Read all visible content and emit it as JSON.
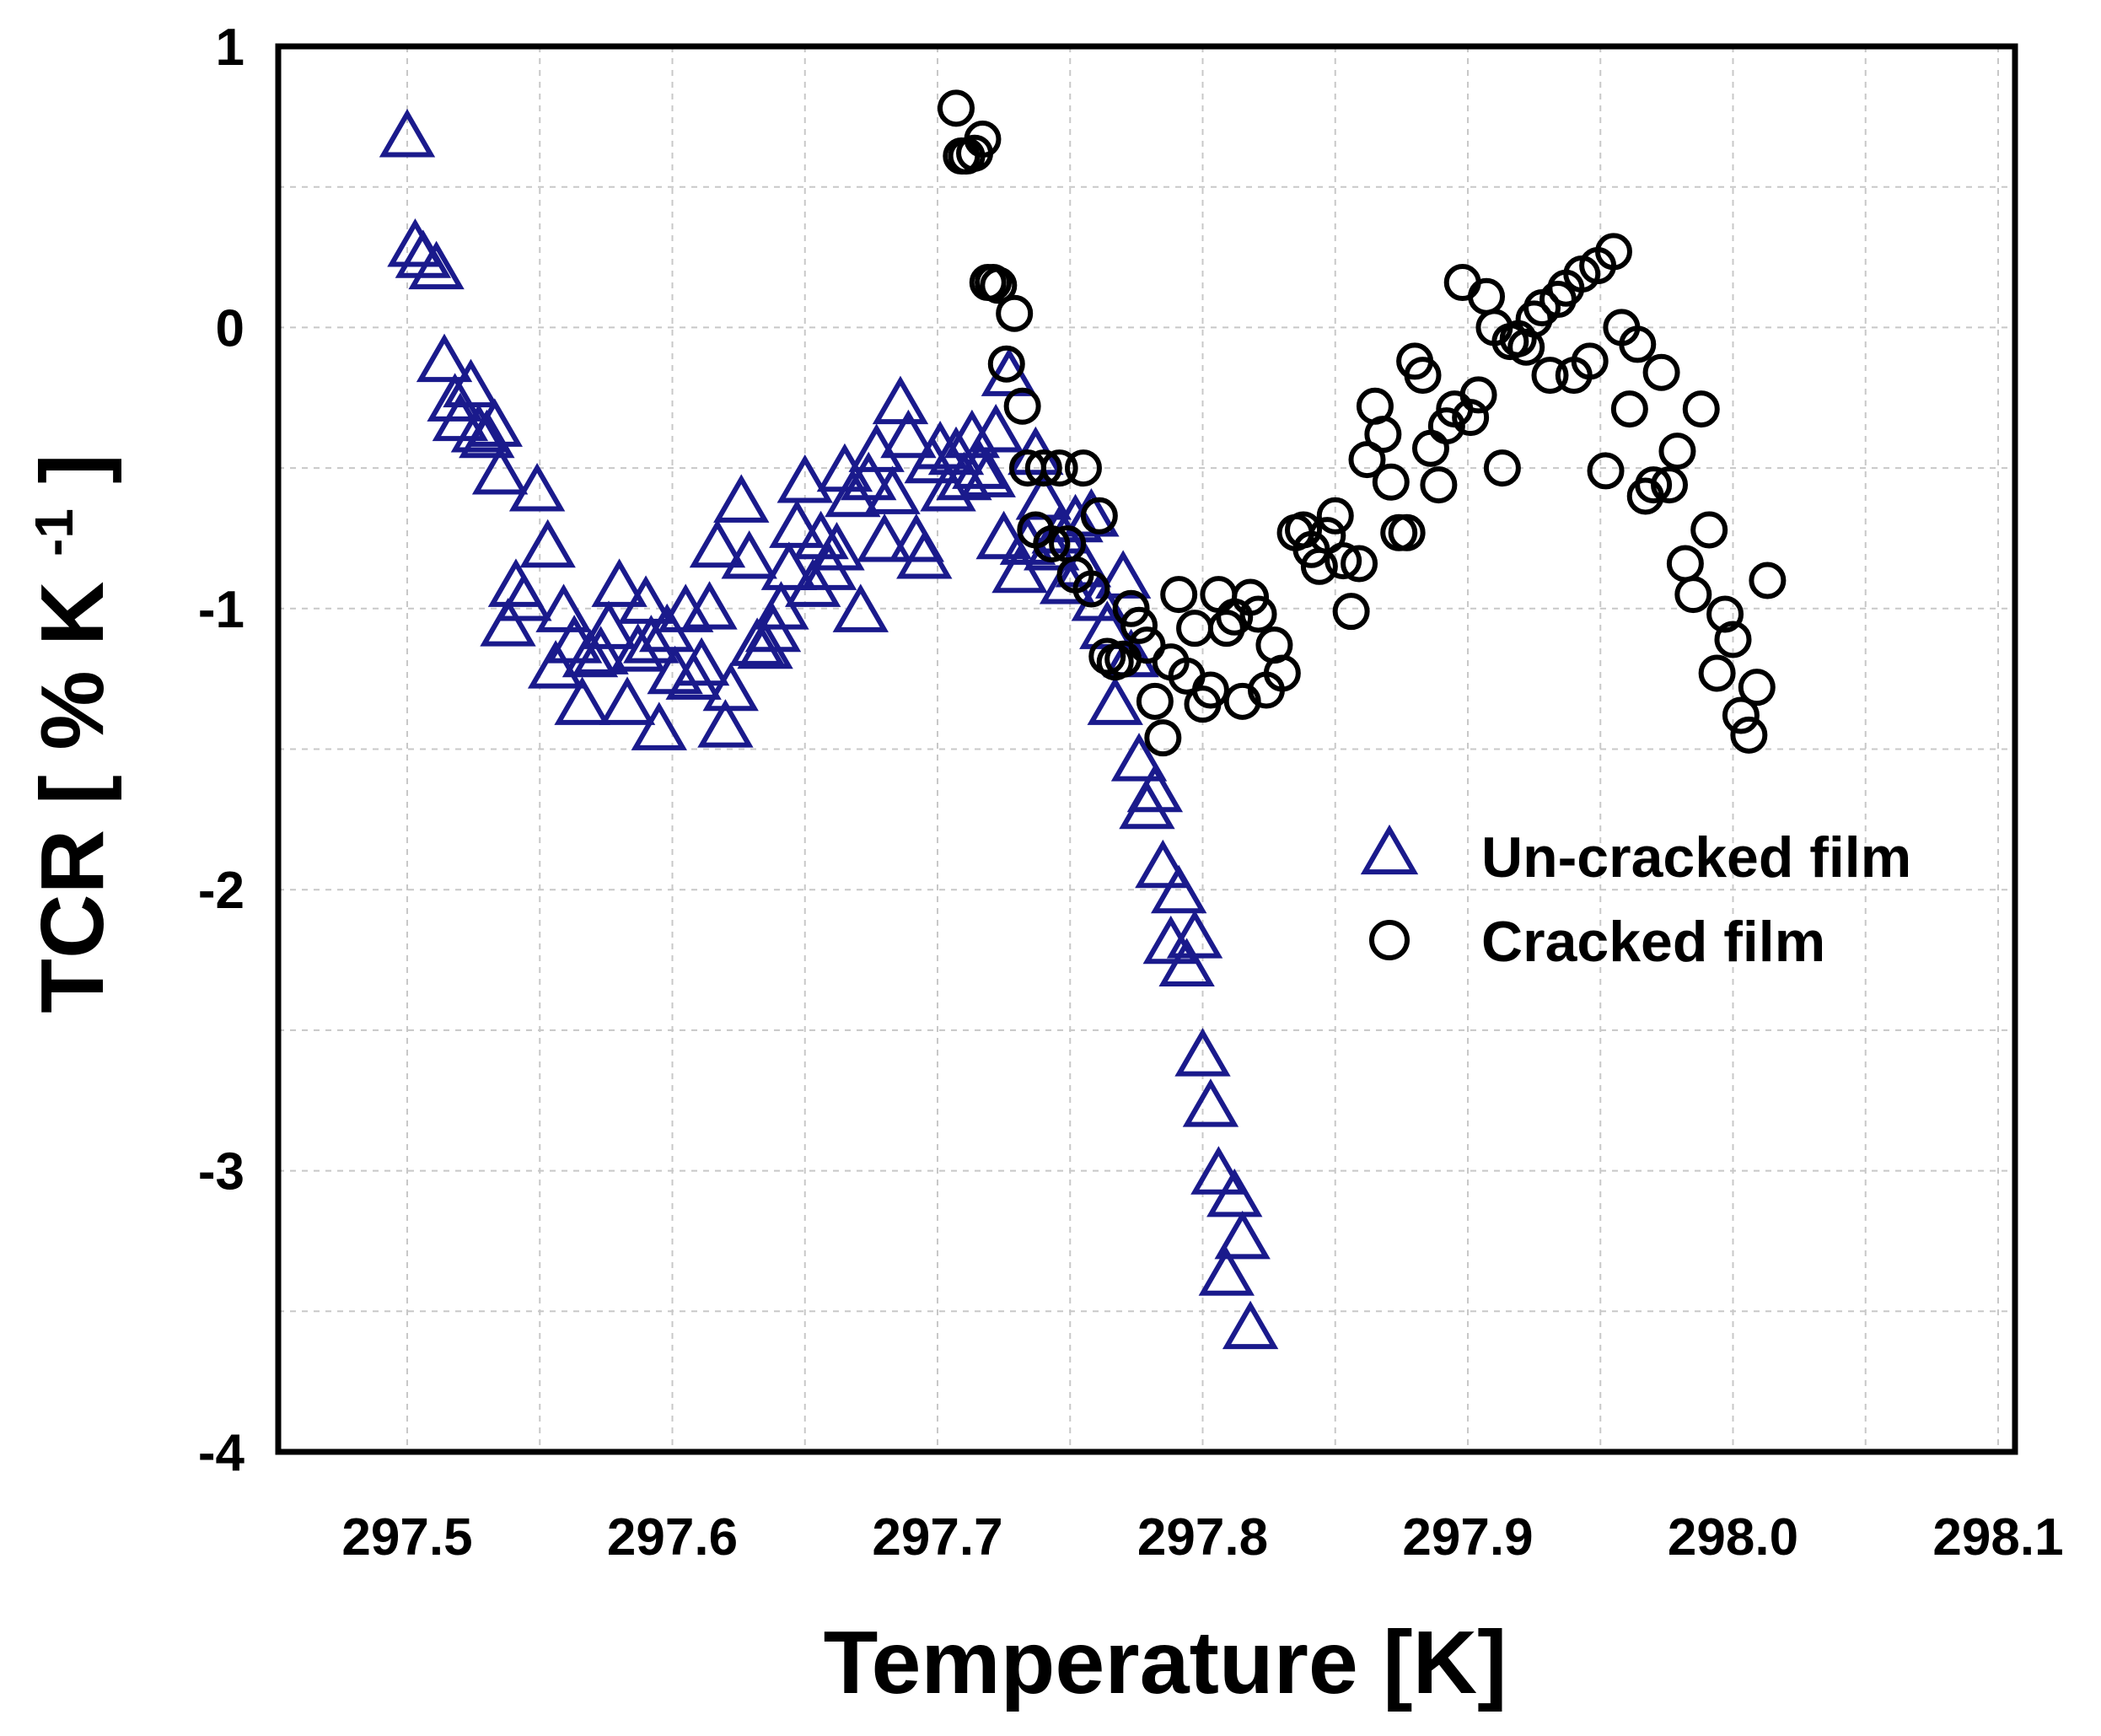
{
  "chart_data": {
    "type": "scatter",
    "title": "",
    "xlabel": "Temperature [K]",
    "ylabel_parts": {
      "main": "TCR [ % K ",
      "exp": "-1",
      "close": " ]"
    },
    "xlim": [
      297.45,
      298.1
    ],
    "ylim": [
      -4,
      1
    ],
    "grid": true,
    "legend_position": "right-middle",
    "x_ticks": [
      {
        "value": 297.5,
        "label": "297.5"
      },
      {
        "value": 297.6,
        "label": "297.6"
      },
      {
        "value": 297.7,
        "label": "297.7"
      },
      {
        "value": 297.8,
        "label": "297.8"
      },
      {
        "value": 297.9,
        "label": "297.9"
      },
      {
        "value": 298.0,
        "label": "298.0"
      },
      {
        "value": 298.1,
        "label": "298.1"
      }
    ],
    "y_ticks": [
      {
        "value": 1,
        "label": "1"
      },
      {
        "value": 0,
        "label": "0"
      },
      {
        "value": -1,
        "label": "-1"
      },
      {
        "value": -2,
        "label": "-2"
      },
      {
        "value": -3,
        "label": "-3"
      },
      {
        "value": -4,
        "label": "-4"
      }
    ],
    "x_minor_grid": [
      297.55,
      297.65,
      297.75,
      297.85,
      297.95,
      298.05
    ],
    "y_minor_grid": [
      0.5,
      -0.5,
      -1.5,
      -2.5,
      -3.5
    ],
    "series": [
      {
        "name": "Un-cracked film",
        "marker": "triangle",
        "color": "#1a1a8c",
        "points": [
          [
            297.5,
            0.67
          ],
          [
            297.503,
            0.28
          ],
          [
            297.506,
            0.24
          ],
          [
            297.511,
            0.2
          ],
          [
            297.514,
            -0.13
          ],
          [
            297.518,
            -0.27
          ],
          [
            297.52,
            -0.34
          ],
          [
            297.524,
            -0.22
          ],
          [
            297.527,
            -0.38
          ],
          [
            297.53,
            -0.4
          ],
          [
            297.533,
            -0.36
          ],
          [
            297.535,
            -0.53
          ],
          [
            297.538,
            -1.07
          ],
          [
            297.541,
            -0.93
          ],
          [
            297.544,
            -0.98
          ],
          [
            297.549,
            -0.59
          ],
          [
            297.553,
            -0.79
          ],
          [
            297.556,
            -1.22
          ],
          [
            297.559,
            -1.02
          ],
          [
            297.563,
            -1.13
          ],
          [
            297.566,
            -1.35
          ],
          [
            297.569,
            -1.18
          ],
          [
            297.573,
            -1.17
          ],
          [
            297.576,
            -1.08
          ],
          [
            297.58,
            -0.93
          ],
          [
            297.583,
            -1.35
          ],
          [
            297.587,
            -1.16
          ],
          [
            297.59,
            -0.99
          ],
          [
            297.592,
            -1.13
          ],
          [
            297.595,
            -1.44
          ],
          [
            297.598,
            -1.09
          ],
          [
            297.601,
            -1.24
          ],
          [
            297.605,
            -1.02
          ],
          [
            297.608,
            -1.26
          ],
          [
            297.611,
            -1.21
          ],
          [
            297.614,
            -1.01
          ],
          [
            297.617,
            -0.79
          ],
          [
            297.62,
            -1.43
          ],
          [
            297.622,
            -1.3
          ],
          [
            297.626,
            -0.63
          ],
          [
            297.629,
            -0.83
          ],
          [
            297.632,
            -1.14
          ],
          [
            297.635,
            -1.15
          ],
          [
            297.638,
            -1.09
          ],
          [
            297.641,
            -1.01
          ],
          [
            297.644,
            -0.87
          ],
          [
            297.647,
            -0.72
          ],
          [
            297.65,
            -0.56
          ],
          [
            297.653,
            -0.93
          ],
          [
            297.656,
            -0.76
          ],
          [
            297.659,
            -0.87
          ],
          [
            297.662,
            -0.8
          ],
          [
            297.665,
            -0.52
          ],
          [
            297.668,
            -0.61
          ],
          [
            297.671,
            -1.02
          ],
          [
            297.674,
            -0.55
          ],
          [
            297.677,
            -0.45
          ],
          [
            297.68,
            -0.77
          ],
          [
            297.683,
            -0.6
          ],
          [
            297.686,
            -0.28
          ],
          [
            297.689,
            -0.4
          ],
          [
            297.692,
            -0.77
          ],
          [
            297.695,
            -0.83
          ],
          [
            297.698,
            -0.49
          ],
          [
            297.701,
            -0.44
          ],
          [
            297.704,
            -0.59
          ],
          [
            297.707,
            -0.46
          ],
          [
            297.71,
            -0.55
          ],
          [
            297.713,
            -0.4
          ],
          [
            297.716,
            -0.51
          ],
          [
            297.719,
            -0.54
          ],
          [
            297.722,
            -0.38
          ],
          [
            297.725,
            -0.76
          ],
          [
            297.727,
            -0.18
          ],
          [
            297.731,
            -0.88
          ],
          [
            297.734,
            -0.78
          ],
          [
            297.737,
            -0.46
          ],
          [
            297.74,
            -0.62
          ],
          [
            297.743,
            -0.8
          ],
          [
            297.746,
            -0.74
          ],
          [
            297.749,
            -0.92
          ],
          [
            297.752,
            -0.7
          ],
          [
            297.755,
            -0.86
          ],
          [
            297.758,
            -0.68
          ],
          [
            297.761,
            -0.98
          ],
          [
            297.764,
            -1.08
          ],
          [
            297.767,
            -1.35
          ],
          [
            297.77,
            -0.9
          ],
          [
            297.773,
            -1.18
          ],
          [
            297.776,
            -1.55
          ],
          [
            297.779,
            -1.72
          ],
          [
            297.782,
            -1.66
          ],
          [
            297.785,
            -1.93
          ],
          [
            297.788,
            -2.2
          ],
          [
            297.791,
            -2.02
          ],
          [
            297.794,
            -2.28
          ],
          [
            297.797,
            -2.18
          ],
          [
            297.8,
            -2.6
          ],
          [
            297.803,
            -2.78
          ],
          [
            297.806,
            -3.02
          ],
          [
            297.809,
            -3.38
          ],
          [
            297.812,
            -3.1
          ],
          [
            297.815,
            -3.25
          ],
          [
            297.818,
            -3.57
          ]
        ]
      },
      {
        "name": "Cracked film",
        "marker": "circle",
        "color": "#000000",
        "points": [
          [
            297.707,
            0.78
          ],
          [
            297.709,
            0.61
          ],
          [
            297.711,
            0.61
          ],
          [
            297.714,
            0.62
          ],
          [
            297.717,
            0.67
          ],
          [
            297.719,
            0.16
          ],
          [
            297.721,
            0.16
          ],
          [
            297.723,
            0.15
          ],
          [
            297.726,
            -0.13
          ],
          [
            297.729,
            0.05
          ],
          [
            297.732,
            -0.28
          ],
          [
            297.734,
            -0.5
          ],
          [
            297.737,
            -0.72
          ],
          [
            297.74,
            -0.5
          ],
          [
            297.743,
            -0.77
          ],
          [
            297.746,
            -0.5
          ],
          [
            297.749,
            -0.77
          ],
          [
            297.752,
            -0.88
          ],
          [
            297.755,
            -0.5
          ],
          [
            297.758,
            -0.93
          ],
          [
            297.761,
            -0.67
          ],
          [
            297.764,
            -1.17
          ],
          [
            297.767,
            -1.19
          ],
          [
            297.77,
            -1.18
          ],
          [
            297.773,
            -1.0
          ],
          [
            297.776,
            -1.06
          ],
          [
            297.779,
            -1.13
          ],
          [
            297.782,
            -1.33
          ],
          [
            297.785,
            -1.46
          ],
          [
            297.788,
            -1.19
          ],
          [
            297.791,
            -0.95
          ],
          [
            297.794,
            -1.24
          ],
          [
            297.797,
            -1.07
          ],
          [
            297.8,
            -1.34
          ],
          [
            297.803,
            -1.29
          ],
          [
            297.806,
            -0.95
          ],
          [
            297.809,
            -1.07
          ],
          [
            297.812,
            -1.03
          ],
          [
            297.815,
            -1.33
          ],
          [
            297.818,
            -0.96
          ],
          [
            297.821,
            -1.02
          ],
          [
            297.824,
            -1.29
          ],
          [
            297.827,
            -1.13
          ],
          [
            297.83,
            -1.23
          ],
          [
            297.835,
            -0.73
          ],
          [
            297.838,
            -0.72
          ],
          [
            297.841,
            -0.79
          ],
          [
            297.844,
            -0.85
          ],
          [
            297.847,
            -0.74
          ],
          [
            297.85,
            -0.67
          ],
          [
            297.853,
            -0.83
          ],
          [
            297.856,
            -1.01
          ],
          [
            297.859,
            -0.84
          ],
          [
            297.862,
            -0.47
          ],
          [
            297.865,
            -0.28
          ],
          [
            297.868,
            -0.38
          ],
          [
            297.871,
            -0.55
          ],
          [
            297.874,
            -0.73
          ],
          [
            297.877,
            -0.73
          ],
          [
            297.88,
            -0.12
          ],
          [
            297.883,
            -0.17
          ],
          [
            297.886,
            -0.43
          ],
          [
            297.889,
            -0.56
          ],
          [
            297.892,
            -0.35
          ],
          [
            297.895,
            -0.29
          ],
          [
            297.898,
            0.16
          ],
          [
            297.901,
            -0.32
          ],
          [
            297.904,
            -0.24
          ],
          [
            297.907,
            0.11
          ],
          [
            297.91,
            0.0
          ],
          [
            297.913,
            -0.5
          ],
          [
            297.916,
            -0.05
          ],
          [
            297.919,
            -0.04
          ],
          [
            297.922,
            -0.07
          ],
          [
            297.925,
            0.03
          ],
          [
            297.928,
            0.07
          ],
          [
            297.931,
            -0.17
          ],
          [
            297.934,
            0.1
          ],
          [
            297.937,
            0.14
          ],
          [
            297.94,
            -0.17
          ],
          [
            297.943,
            0.19
          ],
          [
            297.946,
            -0.12
          ],
          [
            297.949,
            0.22
          ],
          [
            297.952,
            -0.51
          ],
          [
            297.955,
            0.27
          ],
          [
            297.958,
            0.0
          ],
          [
            297.961,
            -0.29
          ],
          [
            297.964,
            -0.06
          ],
          [
            297.967,
            -0.6
          ],
          [
            297.97,
            -0.56
          ],
          [
            297.973,
            -0.16
          ],
          [
            297.976,
            -0.56
          ],
          [
            297.979,
            -0.44
          ],
          [
            297.982,
            -0.84
          ],
          [
            297.985,
            -0.95
          ],
          [
            297.988,
            -0.29
          ],
          [
            297.991,
            -0.72
          ],
          [
            297.994,
            -1.23
          ],
          [
            297.997,
            -1.02
          ],
          [
            298.0,
            -1.11
          ],
          [
            298.003,
            -1.38
          ],
          [
            298.006,
            -1.45
          ],
          [
            298.009,
            -1.28
          ],
          [
            298.013,
            -0.9
          ]
        ]
      }
    ]
  }
}
